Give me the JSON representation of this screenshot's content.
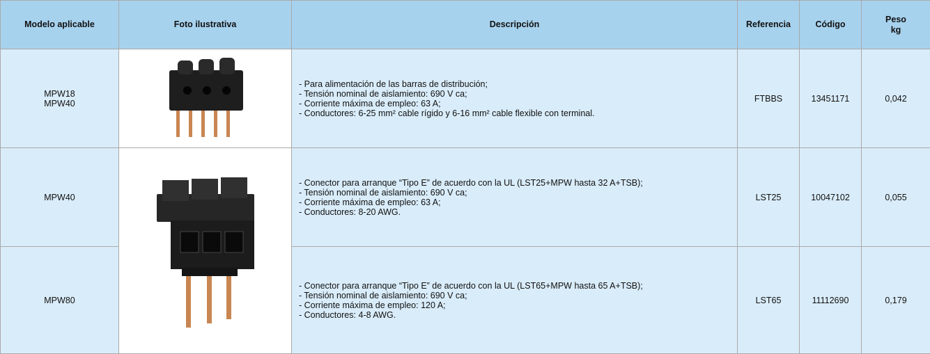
{
  "header": {
    "columns": [
      [
        "Modelo aplicable"
      ],
      [
        "Foto ilustrativa"
      ],
      [
        "Descripción"
      ],
      [
        "Referencia"
      ],
      [
        "Código"
      ],
      [
        "Peso",
        "kg"
      ]
    ]
  },
  "rows": [
    {
      "model": [
        "MPW18",
        "MPW40"
      ],
      "description": [
        "- Para alimentación de las barras de distribución;",
        "- Tensión nominal de aislamiento: 690 V ca;",
        "- Corriente máxima de empleo: 63 A;",
        "- Conductores: 6-25 mm² cable rígido y 6-16 mm² cable flexible con terminal."
      ],
      "reference": "FTBBS",
      "code": "13451171",
      "weight": "0,042"
    },
    {
      "model": [
        "MPW40"
      ],
      "description": [
        "- Conector para arranque “Tipo E” de acuerdo con la UL (LST25+MPW hasta 32 A+TSB);",
        "- Tensión nominal de aislamiento: 690 V ca;",
        "- Corriente máxima de empleo: 63 A;",
        "- Conductores: 8-20 AWG."
      ],
      "reference": "LST25",
      "code": "10047102",
      "weight": "0,055"
    },
    {
      "model": [
        "MPW80"
      ],
      "description": [
        "- Conector para arranque “Tipo E” de acuerdo con la UL (LST65+MPW hasta 65 A+TSB);",
        "- Tensión nominal de aislamiento: 690 V ca;",
        "- Corriente máxima de empleo: 120 A;",
        "- Conductores: 4-8 AWG."
      ],
      "reference": "LST65",
      "code": "11112690",
      "weight": "0,179"
    }
  ]
}
